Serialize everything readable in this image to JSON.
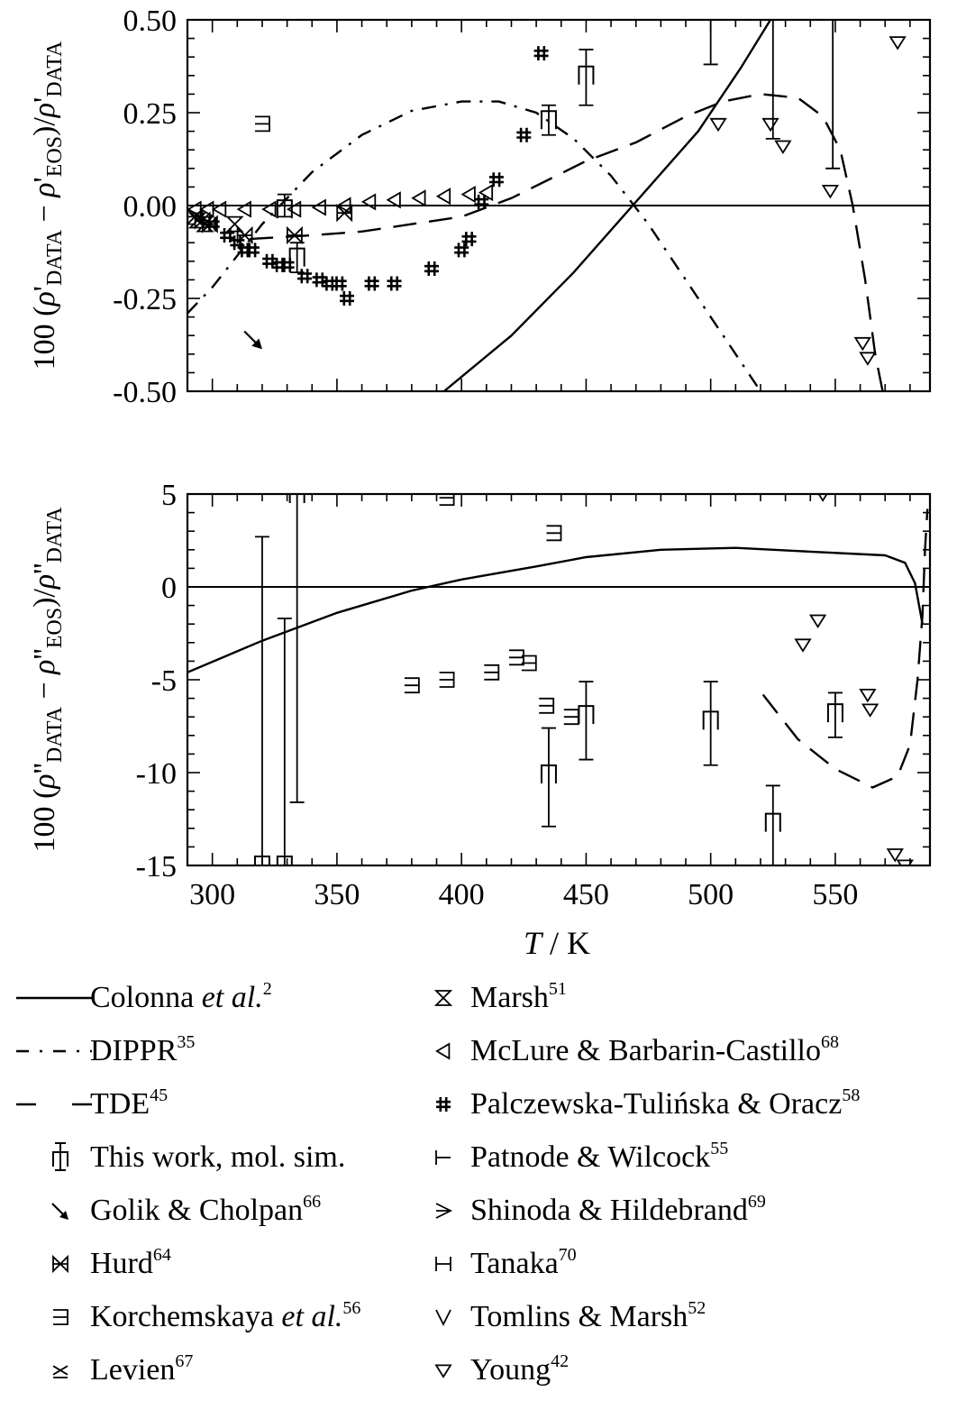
{
  "chart_data": [
    {
      "type": "scatter",
      "panel": "top",
      "ylabel": {
        "pre": "100 (",
        "rho": "ρ",
        "p1": "'",
        "s1": "DATA",
        "minus": " − ",
        "p2": "'",
        "s2": "EOS",
        "mid": ")/",
        "p3": "'",
        "s3": "DATA"
      },
      "xlim": [
        290,
        588
      ],
      "ylim": [
        -0.5,
        0.5
      ],
      "yticks": [
        "-0.50",
        "-0.25",
        "0.00",
        "0.25",
        "0.50"
      ],
      "ytick_values": [
        -0.5,
        -0.25,
        0,
        0.25,
        0.5
      ],
      "xticks": [
        300,
        350,
        400,
        450,
        500,
        550
      ],
      "series": [
        {
          "name": "Colonna et al.",
          "style": "solid",
          "points": [
            [
              393,
              -0.5
            ],
            [
              420,
              -0.35
            ],
            [
              445,
              -0.18
            ],
            [
              470,
              0.01
            ],
            [
              495,
              0.2
            ],
            [
              512,
              0.37
            ],
            [
              524,
              0.5
            ]
          ]
        },
        {
          "name": "DIPPR",
          "style": "dash-dot",
          "points": [
            [
              290,
              -0.29
            ],
            [
              300,
              -0.22
            ],
            [
              320,
              -0.05
            ],
            [
              340,
              0.09
            ],
            [
              360,
              0.19
            ],
            [
              380,
              0.255
            ],
            [
              400,
              0.28
            ],
            [
              415,
              0.28
            ],
            [
              430,
              0.25
            ],
            [
              445,
              0.18
            ],
            [
              460,
              0.08
            ],
            [
              475,
              -0.05
            ],
            [
              490,
              -0.2
            ],
            [
              505,
              -0.35
            ],
            [
              520,
              -0.5
            ]
          ]
        },
        {
          "name": "TDE",
          "style": "dash",
          "points": [
            [
              315,
              -0.09
            ],
            [
              340,
              -0.08
            ],
            [
              360,
              -0.07
            ],
            [
              380,
              -0.05
            ],
            [
              400,
              -0.03
            ],
            [
              420,
              0.02
            ],
            [
              450,
              0.12
            ],
            [
              470,
              0.17
            ],
            [
              490,
              0.24
            ],
            [
              505,
              0.28
            ],
            [
              520,
              0.3
            ],
            [
              535,
              0.29
            ],
            [
              545,
              0.24
            ],
            [
              552,
              0.15
            ],
            [
              557,
              0.0
            ],
            [
              562,
              -0.2
            ],
            [
              566,
              -0.4
            ],
            [
              569,
              -0.5
            ]
          ]
        },
        {
          "name": "This work, mol. sim.",
          "points": [
            [
              329,
              -0.01,
              0.03,
              -0.03
            ],
            [
              334,
              -0.14,
              -0.1,
              -0.18
            ],
            [
              435,
              0.23,
              0.27,
              0.19
            ],
            [
              450,
              0.35,
              0.42,
              0.27
            ]
          ]
        },
        {
          "name": "Golik & Cholpan",
          "points": [
            [
              302,
              -0.29
            ]
          ]
        },
        {
          "name": "Hurd",
          "points": [
            [
              293,
              -0.03
            ],
            [
              296,
              -0.04
            ],
            [
              299,
              -0.05
            ],
            [
              313,
              -0.08
            ],
            [
              333,
              -0.08
            ],
            [
              353,
              -0.02
            ]
          ]
        },
        {
          "name": "Korchemskaya et al.",
          "points": [
            [
              320,
              0.22
            ]
          ]
        },
        {
          "name": "Marsh",
          "points": [
            [
              294,
              -0.04
            ],
            [
              297,
              -0.05
            ],
            [
              309,
              -0.05
            ]
          ]
        },
        {
          "name": "McLure & Barbarin-Castillo",
          "points": [
            [
              293,
              -0.01
            ],
            [
              298,
              -0.01
            ],
            [
              303,
              -0.01
            ],
            [
              313,
              -0.01
            ],
            [
              323,
              -0.01
            ],
            [
              333,
              -0.01
            ],
            [
              343,
              -0.005
            ],
            [
              353,
              0.0
            ],
            [
              363,
              0.01
            ],
            [
              373,
              0.015
            ],
            [
              383,
              0.02
            ],
            [
              393,
              0.025
            ],
            [
              403,
              0.03
            ],
            [
              410,
              0.035
            ]
          ]
        },
        {
          "name": "Palczewska-Tulińska & Oracz",
          "points": [
            [
              300,
              -0.05
            ],
            [
              306,
              -0.08
            ],
            [
              310,
              -0.1
            ],
            [
              313,
              -0.12
            ],
            [
              316,
              -0.12
            ],
            [
              323,
              -0.15
            ],
            [
              327,
              -0.16
            ],
            [
              330,
              -0.16
            ],
            [
              337,
              -0.19
            ],
            [
              343,
              -0.2
            ],
            [
              347,
              -0.21
            ],
            [
              351,
              -0.21
            ],
            [
              354,
              -0.25
            ],
            [
              364,
              -0.21
            ],
            [
              373,
              -0.21
            ],
            [
              388,
              -0.17
            ],
            [
              400,
              -0.12
            ],
            [
              403,
              -0.09
            ],
            [
              408,
              0.01
            ],
            [
              414,
              0.07
            ],
            [
              425,
              0.19
            ],
            [
              432,
              0.41
            ]
          ]
        },
        {
          "name": "Young",
          "points": [
            [
              503,
              0.22
            ],
            [
              524,
              0.22
            ],
            [
              529,
              0.16
            ],
            [
              548,
              0.04
            ],
            [
              561,
              -0.37
            ],
            [
              563,
              -0.41
            ],
            [
              575,
              0.44
            ]
          ]
        }
      ],
      "errorbars_upward": [
        [
          500,
          0.38,
          0.5
        ],
        [
          525,
          0.18,
          0.5
        ],
        [
          549,
          0.1,
          0.5
        ]
      ]
    },
    {
      "type": "scatter",
      "panel": "bottom",
      "xlabel": {
        "var": "T",
        "unit": " / K"
      },
      "ylabel": {
        "pre": "100 (",
        "rho": "ρ",
        "p1": "''",
        "s1": "DATA",
        "minus": " − ",
        "p2": "''",
        "s2": "EOS",
        "mid": ")/",
        "p3": "''",
        "s3": "DATA"
      },
      "xlim": [
        290,
        588
      ],
      "ylim": [
        -15,
        5
      ],
      "yticks": [
        "-15",
        "-10",
        "-5",
        "0",
        "5"
      ],
      "ytick_values": [
        -15,
        -10,
        -5,
        0,
        5
      ],
      "xticks": [
        300,
        350,
        400,
        450,
        500,
        550
      ],
      "series": [
        {
          "name": "Colonna et al.",
          "style": "solid",
          "points": [
            [
              290,
              -4.6
            ],
            [
              320,
              -2.9
            ],
            [
              350,
              -1.4
            ],
            [
              380,
              -0.2
            ],
            [
              400,
              0.4
            ],
            [
              430,
              1.1
            ],
            [
              450,
              1.6
            ],
            [
              480,
              2.0
            ],
            [
              510,
              2.1
            ],
            [
              540,
              1.9
            ],
            [
              570,
              1.7
            ],
            [
              578,
              1.3
            ],
            [
              582,
              0.2
            ],
            [
              585,
              -2.0
            ]
          ]
        },
        {
          "name": "TDE",
          "style": "dash",
          "points": [
            [
              521,
              -5.8
            ],
            [
              535,
              -8.2
            ],
            [
              550,
              -9.8
            ],
            [
              565,
              -10.8
            ],
            [
              575,
              -10.2
            ],
            [
              580,
              -8.5
            ],
            [
              583,
              -5.0
            ],
            [
              585,
              -1.5
            ],
            [
              586,
              2.0
            ],
            [
              587,
              4.2
            ]
          ]
        },
        {
          "name": "This work, mol. sim.",
          "points": [
            [
              320,
              -15,
              2.7,
              -15
            ],
            [
              329,
              -15,
              -1.7,
              -15
            ],
            [
              334,
              5,
              5,
              -11.6
            ],
            [
              435,
              -10.1,
              -7.6,
              -12.9
            ],
            [
              450,
              -6.9,
              -5.1,
              -9.3
            ],
            [
              500,
              -7.2,
              -5.1,
              -9.6
            ],
            [
              525,
              -12.7,
              -10.7,
              -15
            ],
            [
              550,
              -6.8,
              -5.7,
              -8.1
            ]
          ]
        },
        {
          "name": "Korchemskaya et al.",
          "points": [
            [
              394,
              4.8
            ],
            [
              380,
              -5.3
            ],
            [
              394,
              -5.0
            ],
            [
              412,
              -4.6
            ],
            [
              422,
              -3.8
            ],
            [
              427,
              -4.1
            ],
            [
              434,
              -6.4
            ],
            [
              437,
              2.9
            ],
            [
              444,
              -7.0
            ]
          ]
        },
        {
          "name": "Young",
          "points": [
            [
              537,
              -3.1
            ],
            [
              543,
              -1.8
            ],
            [
              563,
              -5.8
            ],
            [
              564,
              -6.6
            ],
            [
              574,
              -14.4
            ],
            [
              578,
              -15
            ],
            [
              545,
              5
            ]
          ]
        }
      ]
    }
  ],
  "legend": {
    "left": [
      {
        "name": "Colonna",
        "em": "et al.",
        "sup": "2",
        "marker": "line-solid"
      },
      {
        "name": "DIPPR",
        "em": "",
        "sup": "35",
        "marker": "line-dashdot"
      },
      {
        "name": "TDE",
        "em": "",
        "sup": "45",
        "marker": "line-dash"
      },
      {
        "name": "This work, mol. sim.",
        "em": "",
        "sup": "",
        "marker": "thiswork"
      },
      {
        "name": "Golik & Cholpan",
        "em": "",
        "sup": "66",
        "marker": "arrow"
      },
      {
        "name": "Hurd",
        "em": "",
        "sup": "64",
        "marker": "bowtie"
      },
      {
        "name": "Korchemskaya",
        "em": "et al.",
        "sup": "56",
        "marker": "korch"
      },
      {
        "name": "Levien",
        "em": "",
        "sup": "67",
        "marker": "levien"
      }
    ],
    "right": [
      {
        "name": "Marsh",
        "em": "",
        "sup": "51",
        "marker": "hourglass"
      },
      {
        "name": "McLure & Barbarin-Castillo",
        "em": "",
        "sup": "68",
        "marker": "tri-left"
      },
      {
        "name": "Palczewska-Tulińska & Oracz",
        "em": "",
        "sup": "58",
        "marker": "hash"
      },
      {
        "name": "Patnode & Wilcock",
        "em": "",
        "sup": "55",
        "marker": "patnode"
      },
      {
        "name": "Shinoda & Hildebrand",
        "em": "",
        "sup": "69",
        "marker": "shinoda"
      },
      {
        "name": "Tanaka",
        "em": "",
        "sup": "70",
        "marker": "tanaka"
      },
      {
        "name": "Tomlins & Marsh",
        "em": "",
        "sup": "52",
        "marker": "vee"
      },
      {
        "name": "Young",
        "em": "",
        "sup": "42",
        "marker": "tri-down"
      }
    ]
  }
}
